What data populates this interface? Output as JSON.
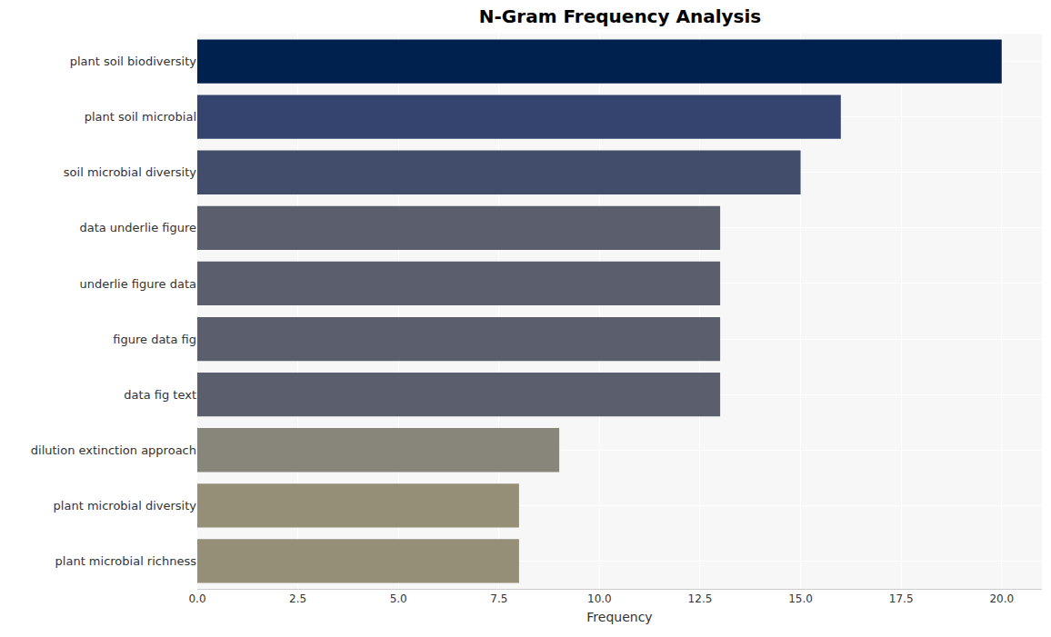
{
  "chart_data": {
    "type": "bar",
    "orientation": "horizontal",
    "title": "N-Gram Frequency Analysis",
    "x_label": "Frequency",
    "categories": [
      "plant soil biodiversity",
      "plant soil microbial",
      "soil microbial diversity",
      "data underlie figure",
      "underlie figure data",
      "figure data fig",
      "data fig text",
      "dilution extinction approach",
      "plant microbial diversity",
      "plant microbial richness"
    ],
    "values": [
      20,
      16,
      15,
      13,
      13,
      13,
      13,
      9,
      8,
      8
    ],
    "colors": [
      "#00204e",
      "#34446e",
      "#424d6b",
      "#5b5f6d",
      "#5b5f6d",
      "#5b5f6d",
      "#5b5f6d",
      "#88857a",
      "#958f78",
      "#958f78"
    ],
    "xlim": [
      0,
      21
    ],
    "xticks": [
      {
        "value": 0,
        "label": "0.0"
      },
      {
        "value": 2.5,
        "label": "2.5"
      },
      {
        "value": 5,
        "label": "5.0"
      },
      {
        "value": 7.5,
        "label": "7.5"
      },
      {
        "value": 10,
        "label": "10.0"
      },
      {
        "value": 12.5,
        "label": "12.5"
      },
      {
        "value": 15,
        "label": "15.0"
      },
      {
        "value": 17.5,
        "label": "17.5"
      },
      {
        "value": 20,
        "label": "20.0"
      }
    ],
    "grid": true
  }
}
